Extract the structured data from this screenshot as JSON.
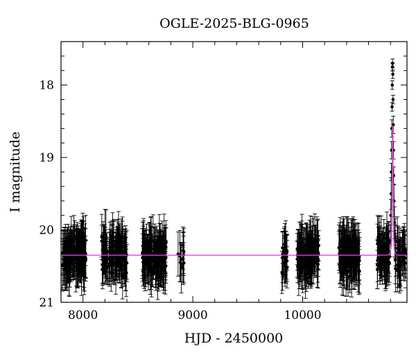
{
  "chart_data": {
    "type": "scatter",
    "title": "OGLE-2025-BLG-0965",
    "xlabel": "HJD - 2450000",
    "ylabel": "I magnitude",
    "xlim": [
      7800,
      10950
    ],
    "ylim": [
      21,
      17.4
    ],
    "y_inverted": true,
    "x_ticks": [
      8000,
      9000,
      10000
    ],
    "y_ticks": [
      18,
      19,
      20,
      21
    ],
    "x_minor_step": 200,
    "y_minor_step": 0.2,
    "grid": false,
    "legend": "none",
    "series": [
      {
        "kind": "points_with_errorbars",
        "color": "#000000",
        "baseline_mag": 20.35,
        "typical_error": 0.28,
        "seasons": [
          {
            "start": 7810,
            "end": 8030,
            "n": 140
          },
          {
            "start": 8170,
            "end": 8400,
            "n": 140
          },
          {
            "start": 8540,
            "end": 8760,
            "n": 140
          },
          {
            "start": 8860,
            "end": 8920,
            "n": 12
          },
          {
            "start": 9810,
            "end": 9860,
            "n": 25
          },
          {
            "start": 9950,
            "end": 10150,
            "n": 110
          },
          {
            "start": 10330,
            "end": 10520,
            "n": 110
          },
          {
            "start": 10680,
            "end": 10790,
            "n": 70
          },
          {
            "start": 10840,
            "end": 10940,
            "n": 40
          }
        ],
        "event_points": [
          [
            10800,
            20.15
          ],
          [
            10803,
            19.8
          ],
          [
            10806,
            19.5
          ],
          [
            10808,
            19.2
          ],
          [
            10810,
            18.9
          ],
          [
            10812,
            18.6
          ],
          [
            10814,
            18.3
          ],
          [
            10816,
            18.0
          ],
          [
            10818,
            17.75
          ],
          [
            10819,
            17.7
          ],
          [
            10821,
            17.85
          ],
          [
            10823,
            18.2
          ],
          [
            10825,
            18.55
          ],
          [
            10827,
            18.9
          ],
          [
            10829,
            19.25
          ],
          [
            10832,
            19.6
          ],
          [
            10836,
            19.9
          ],
          [
            10842,
            20.15
          ]
        ]
      },
      {
        "kind": "model_curve",
        "color": "#e040e0",
        "baseline_mag": 20.35,
        "peak_time": 10819,
        "peak_mag": 17.7,
        "tE": 9
      }
    ]
  }
}
